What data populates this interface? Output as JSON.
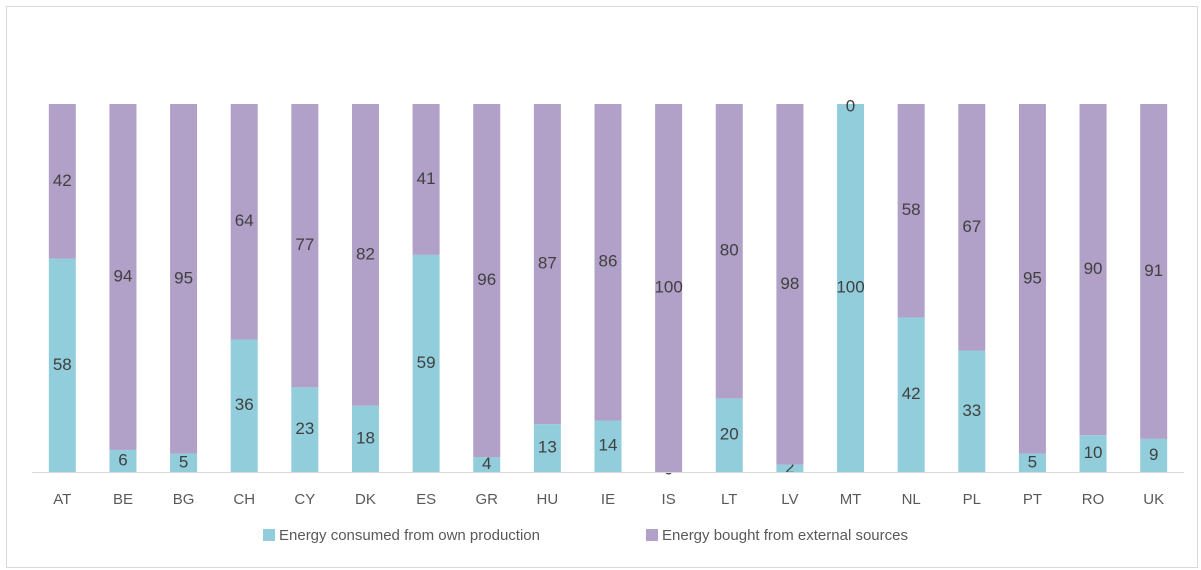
{
  "chart_data": {
    "type": "bar",
    "stacked": true,
    "categories": [
      "AT",
      "BE",
      "BG",
      "CH",
      "CY",
      "DK",
      "ES",
      "GR",
      "HU",
      "IE",
      "IS",
      "LT",
      "LV",
      "MT",
      "NL",
      "PL",
      "PT",
      "RO",
      "UK"
    ],
    "series": [
      {
        "name": "Energy consumed from own production",
        "color": "#92cddc",
        "values": [
          58,
          6,
          5,
          36,
          23,
          18,
          59,
          4,
          13,
          14,
          0,
          20,
          2,
          100,
          42,
          33,
          5,
          10,
          9
        ]
      },
      {
        "name": "Energy bought from external sources",
        "color": "#b1a0c7",
        "values": [
          42,
          94,
          95,
          64,
          77,
          82,
          41,
          96,
          87,
          86,
          100,
          80,
          98,
          0,
          58,
          67,
          95,
          90,
          91
        ]
      }
    ],
    "ylim": [
      0,
      100
    ],
    "grid": false,
    "legend_position": "bottom"
  }
}
